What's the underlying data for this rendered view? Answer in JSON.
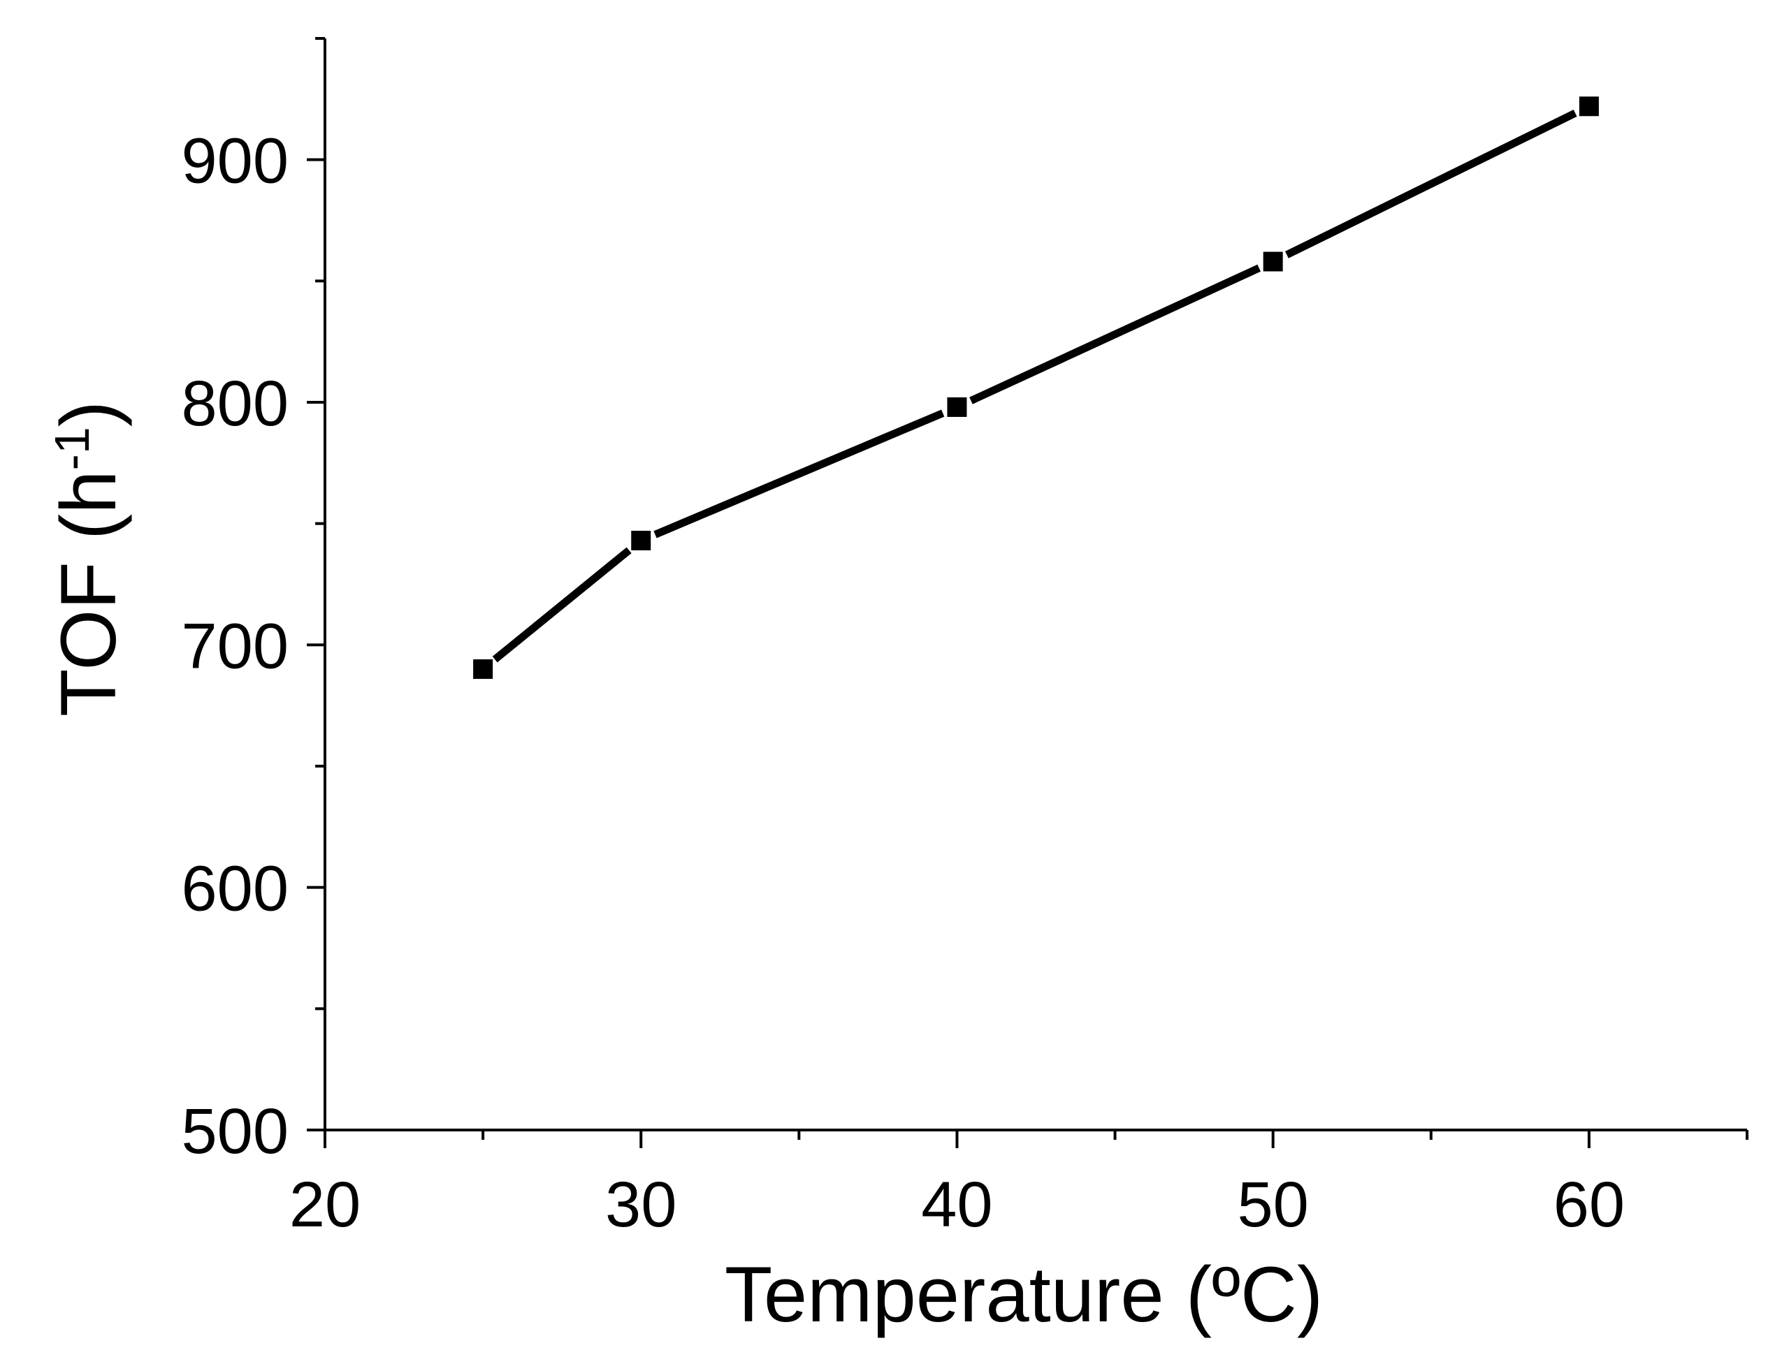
{
  "chart_data": {
    "type": "line",
    "title": "",
    "xlabel": "Temperature (ºC)",
    "ylabel_main": "TOF (h",
    "ylabel_sup": "-1",
    "ylabel_close": ")",
    "xlim": [
      20,
      65
    ],
    "ylim": [
      500,
      950
    ],
    "x_major_ticks": [
      20,
      30,
      40,
      50,
      60
    ],
    "x_minor_ticks": [
      25,
      35,
      45,
      55,
      65
    ],
    "y_major_ticks": [
      500,
      600,
      700,
      800,
      900
    ],
    "y_minor_ticks": [
      550,
      650,
      750,
      850,
      950
    ],
    "x_tick_labels": [
      "20",
      "30",
      "40",
      "50",
      "60"
    ],
    "y_tick_labels": [
      "500",
      "600",
      "700",
      "800",
      "900"
    ],
    "grid": false,
    "series": [
      {
        "name": "TOF",
        "marker": "square",
        "color": "#000000",
        "x": [
          25,
          30,
          40,
          50,
          60
        ],
        "y": [
          690,
          743,
          798,
          858,
          922
        ]
      }
    ]
  }
}
